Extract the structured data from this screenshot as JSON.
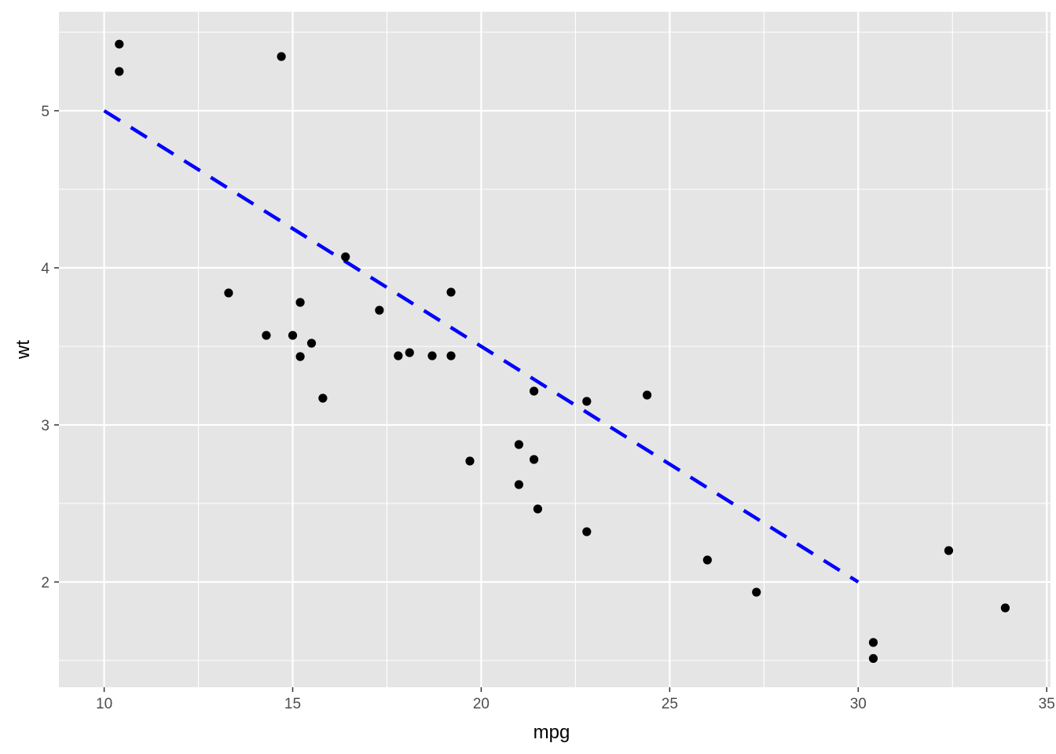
{
  "chart_data": {
    "type": "scatter",
    "title": "",
    "xlabel": "mpg",
    "ylabel": "wt",
    "xlim": [
      8.8,
      35.1
    ],
    "ylim": [
      1.33,
      5.63
    ],
    "x_ticks": [
      10,
      15,
      20,
      25,
      30,
      35
    ],
    "x_tick_labels": [
      "10",
      "15",
      "20",
      "25",
      "30",
      "35"
    ],
    "y_ticks": [
      2,
      3,
      4,
      5
    ],
    "y_tick_labels": [
      "2",
      "3",
      "4",
      "5"
    ],
    "grid": true,
    "legend": "none",
    "colors": {
      "panel": "#e5e5e5",
      "grid": "#ffffff",
      "points": "#000000",
      "line": "#0000ff"
    },
    "points": [
      {
        "x": 10.4,
        "y": 5.424
      },
      {
        "x": 10.4,
        "y": 5.25
      },
      {
        "x": 14.7,
        "y": 5.345
      },
      {
        "x": 13.3,
        "y": 3.84
      },
      {
        "x": 14.3,
        "y": 3.57
      },
      {
        "x": 15.0,
        "y": 3.57
      },
      {
        "x": 15.2,
        "y": 3.78
      },
      {
        "x": 15.2,
        "y": 3.435
      },
      {
        "x": 15.5,
        "y": 3.52
      },
      {
        "x": 15.8,
        "y": 3.17
      },
      {
        "x": 16.4,
        "y": 4.07
      },
      {
        "x": 17.3,
        "y": 3.73
      },
      {
        "x": 17.8,
        "y": 3.44
      },
      {
        "x": 18.1,
        "y": 3.46
      },
      {
        "x": 18.7,
        "y": 3.44
      },
      {
        "x": 19.2,
        "y": 3.44
      },
      {
        "x": 19.2,
        "y": 3.845
      },
      {
        "x": 19.7,
        "y": 2.77
      },
      {
        "x": 21.0,
        "y": 2.62
      },
      {
        "x": 21.0,
        "y": 2.875
      },
      {
        "x": 21.4,
        "y": 3.215
      },
      {
        "x": 21.4,
        "y": 2.78
      },
      {
        "x": 21.5,
        "y": 2.465
      },
      {
        "x": 22.8,
        "y": 2.32
      },
      {
        "x": 22.8,
        "y": 3.15
      },
      {
        "x": 24.4,
        "y": 3.19
      },
      {
        "x": 26.0,
        "y": 2.14
      },
      {
        "x": 27.3,
        "y": 1.935
      },
      {
        "x": 30.4,
        "y": 1.615
      },
      {
        "x": 30.4,
        "y": 1.513
      },
      {
        "x": 32.4,
        "y": 2.2
      },
      {
        "x": 33.9,
        "y": 1.835
      }
    ],
    "reference_line": {
      "style": "dashed",
      "from": {
        "x": 10,
        "y": 5
      },
      "to": {
        "x": 30,
        "y": 2
      }
    }
  }
}
